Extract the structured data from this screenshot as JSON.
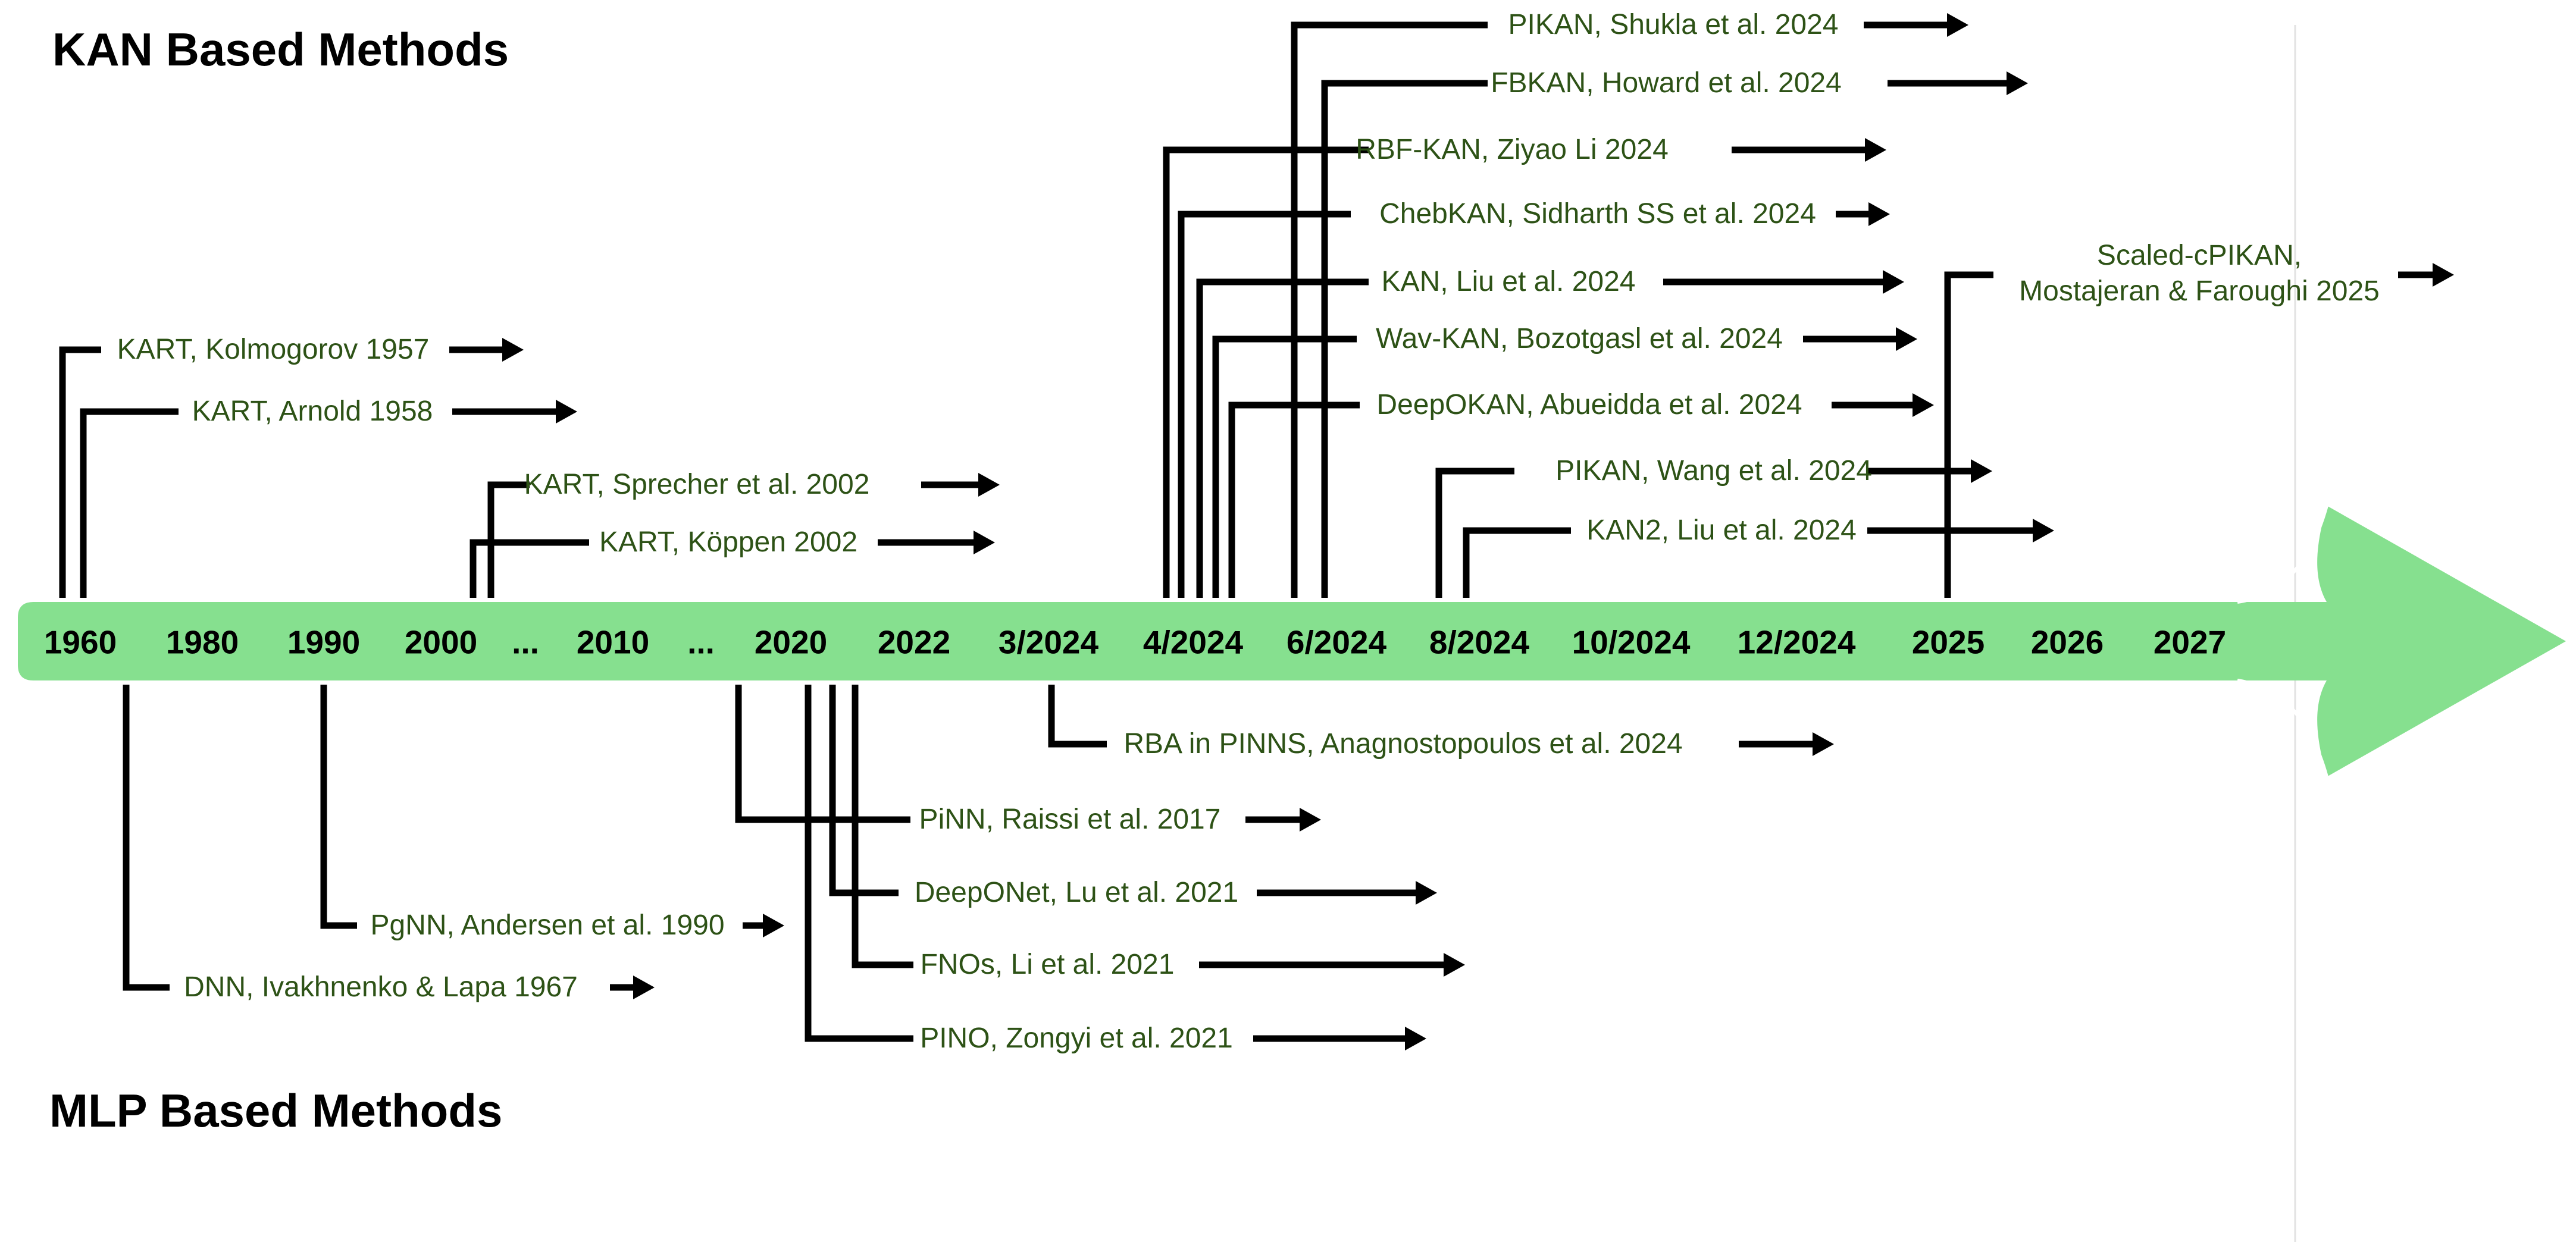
{
  "sections": {
    "kan_title": "KAN Based Methods",
    "mlp_title": "MLP Based Methods"
  },
  "timeline": {
    "ticks": [
      "1960",
      "1980",
      "1990",
      "2000",
      "...",
      "2010",
      "...",
      "2020",
      "2022",
      "3/2024",
      "4/2024",
      "6/2024",
      "8/2024",
      "10/2024",
      "12/2024",
      "2025",
      "2026",
      "2027"
    ]
  },
  "kan_methods": [
    "KART, Kolmogorov 1957",
    "KART, Arnold 1958",
    "KART, Sprecher et al. 2002",
    "KART, Köppen 2002",
    "PIKAN, Shukla et al. 2024",
    "FBKAN, Howard et al. 2024",
    "RBF-KAN, Ziyao Li 2024",
    "ChebKAN, Sidharth SS et al. 2024",
    "KAN, Liu et al. 2024",
    "Wav-KAN, Bozotgasl et al. 2024",
    "DeepOKAN, Abueidda et al. 2024",
    "PIKAN, Wang et al. 2024",
    "KAN2, Liu et al. 2024",
    "Scaled-cPIKAN,",
    "Mostajeran & Faroughi 2025"
  ],
  "mlp_methods": [
    "DNN, Ivakhnenko & Lapa 1967",
    "PgNN, Andersen et al. 1990",
    "RBA in PINNS, Anagnostopoulos et al. 2024",
    "PiNN, Raissi et al. 2017",
    "DeepONet, Lu et al. 2021",
    "FNOs, Li et al. 2021",
    "PINO, Zongyi et al. 2021"
  ],
  "colors": {
    "timeline_fill": "#86e08f",
    "label_text": "#2d5216",
    "connector": "#000000"
  }
}
